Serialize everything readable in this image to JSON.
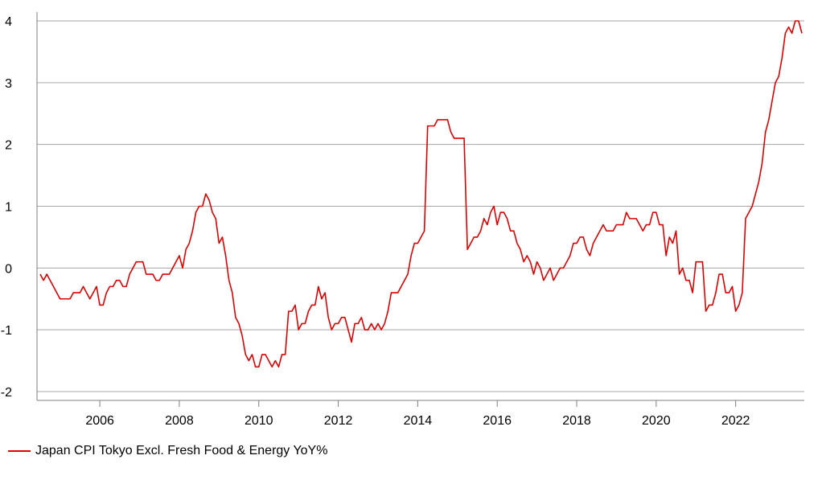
{
  "chart_data": {
    "type": "line",
    "title": "",
    "xlabel": "",
    "ylabel": "",
    "ylim": [
      -2,
      4
    ],
    "xlim": [
      "2004-07",
      "2023-09"
    ],
    "yticks": [
      "4",
      "3",
      "2",
      "1",
      "0",
      "-1",
      "-2"
    ],
    "xticks": [
      "2006",
      "2008",
      "2010",
      "2012",
      "2014",
      "2016",
      "2018",
      "2020",
      "2022"
    ],
    "grid": "horizontal",
    "legend_position": "bottom-left",
    "series": [
      {
        "name": "Japan CPI Tokyo Excl. Fresh Food & Energy YoY%",
        "color": "#e00000",
        "x": [
          "2004-07",
          "2004-08",
          "2004-09",
          "2004-10",
          "2004-11",
          "2004-12",
          "2005-01",
          "2005-02",
          "2005-03",
          "2005-04",
          "2005-05",
          "2005-06",
          "2005-07",
          "2005-08",
          "2005-09",
          "2005-10",
          "2005-11",
          "2005-12",
          "2006-01",
          "2006-02",
          "2006-03",
          "2006-04",
          "2006-05",
          "2006-06",
          "2006-07",
          "2006-08",
          "2006-09",
          "2006-10",
          "2006-11",
          "2006-12",
          "2007-01",
          "2007-02",
          "2007-03",
          "2007-04",
          "2007-05",
          "2007-06",
          "2007-07",
          "2007-08",
          "2007-09",
          "2007-10",
          "2007-11",
          "2007-12",
          "2008-01",
          "2008-02",
          "2008-03",
          "2008-04",
          "2008-05",
          "2008-06",
          "2008-07",
          "2008-08",
          "2008-09",
          "2008-10",
          "2008-11",
          "2008-12",
          "2009-01",
          "2009-02",
          "2009-03",
          "2009-04",
          "2009-05",
          "2009-06",
          "2009-07",
          "2009-08",
          "2009-09",
          "2009-10",
          "2009-11",
          "2009-12",
          "2010-01",
          "2010-02",
          "2010-03",
          "2010-04",
          "2010-05",
          "2010-06",
          "2010-07",
          "2010-08",
          "2010-09",
          "2010-10",
          "2010-11",
          "2010-12",
          "2011-01",
          "2011-02",
          "2011-03",
          "2011-04",
          "2011-05",
          "2011-06",
          "2011-07",
          "2011-08",
          "2011-09",
          "2011-10",
          "2011-11",
          "2011-12",
          "2012-01",
          "2012-02",
          "2012-03",
          "2012-04",
          "2012-05",
          "2012-06",
          "2012-07",
          "2012-08",
          "2012-09",
          "2012-10",
          "2012-11",
          "2012-12",
          "2013-01",
          "2013-02",
          "2013-03",
          "2013-04",
          "2013-05",
          "2013-06",
          "2013-07",
          "2013-08",
          "2013-09",
          "2013-10",
          "2013-11",
          "2013-12",
          "2014-01",
          "2014-02",
          "2014-03",
          "2014-04",
          "2014-05",
          "2014-06",
          "2014-07",
          "2014-08",
          "2014-09",
          "2014-10",
          "2014-11",
          "2014-12",
          "2015-01",
          "2015-02",
          "2015-03",
          "2015-04",
          "2015-05",
          "2015-06",
          "2015-07",
          "2015-08",
          "2015-09",
          "2015-10",
          "2015-11",
          "2015-12",
          "2016-01",
          "2016-02",
          "2016-03",
          "2016-04",
          "2016-05",
          "2016-06",
          "2016-07",
          "2016-08",
          "2016-09",
          "2016-10",
          "2016-11",
          "2016-12",
          "2017-01",
          "2017-02",
          "2017-03",
          "2017-04",
          "2017-05",
          "2017-06",
          "2017-07",
          "2017-08",
          "2017-09",
          "2017-10",
          "2017-11",
          "2017-12",
          "2018-01",
          "2018-02",
          "2018-03",
          "2018-04",
          "2018-05",
          "2018-06",
          "2018-07",
          "2018-08",
          "2018-09",
          "2018-10",
          "2018-11",
          "2018-12",
          "2019-01",
          "2019-02",
          "2019-03",
          "2019-04",
          "2019-05",
          "2019-06",
          "2019-07",
          "2019-08",
          "2019-09",
          "2019-10",
          "2019-11",
          "2019-12",
          "2020-01",
          "2020-02",
          "2020-03",
          "2020-04",
          "2020-05",
          "2020-06",
          "2020-07",
          "2020-08",
          "2020-09",
          "2020-10",
          "2020-11",
          "2020-12",
          "2021-01",
          "2021-02",
          "2021-03",
          "2021-04",
          "2021-05",
          "2021-06",
          "2021-07",
          "2021-08",
          "2021-09",
          "2021-10",
          "2021-11",
          "2021-12",
          "2022-01",
          "2022-02",
          "2022-03",
          "2022-04",
          "2022-05",
          "2022-06",
          "2022-07",
          "2022-08",
          "2022-09",
          "2022-10",
          "2022-11",
          "2022-12",
          "2023-01",
          "2023-02",
          "2023-03",
          "2023-04",
          "2023-05",
          "2023-06",
          "2023-07",
          "2023-08",
          "2023-09"
        ],
        "values": [
          -0.1,
          -0.2,
          -0.1,
          -0.2,
          -0.3,
          -0.4,
          -0.5,
          -0.5,
          -0.5,
          -0.5,
          -0.4,
          -0.4,
          -0.4,
          -0.3,
          -0.4,
          -0.5,
          -0.4,
          -0.3,
          -0.6,
          -0.6,
          -0.4,
          -0.3,
          -0.3,
          -0.2,
          -0.2,
          -0.3,
          -0.3,
          -0.1,
          0.0,
          0.1,
          0.1,
          0.1,
          -0.1,
          -0.1,
          -0.1,
          -0.2,
          -0.2,
          -0.1,
          -0.1,
          -0.1,
          0.0,
          0.1,
          0.2,
          0.0,
          0.3,
          0.4,
          0.6,
          0.9,
          1.0,
          1.0,
          1.2,
          1.1,
          0.9,
          0.8,
          0.4,
          0.5,
          0.2,
          -0.2,
          -0.4,
          -0.8,
          -0.9,
          -1.1,
          -1.4,
          -1.5,
          -1.4,
          -1.6,
          -1.6,
          -1.4,
          -1.4,
          -1.5,
          -1.6,
          -1.5,
          -1.6,
          -1.4,
          -1.4,
          -0.7,
          -0.7,
          -0.6,
          -1.0,
          -0.9,
          -0.9,
          -0.7,
          -0.6,
          -0.6,
          -0.3,
          -0.5,
          -0.4,
          -0.8,
          -1.0,
          -0.9,
          -0.9,
          -0.8,
          -0.8,
          -1.0,
          -1.2,
          -0.9,
          -0.9,
          -0.8,
          -1.0,
          -1.0,
          -0.9,
          -1.0,
          -0.9,
          -1.0,
          -0.9,
          -0.7,
          -0.4,
          -0.4,
          -0.4,
          -0.3,
          -0.2,
          -0.1,
          0.2,
          0.4,
          0.4,
          0.5,
          0.6,
          2.3,
          2.3,
          2.3,
          2.4,
          2.4,
          2.4,
          2.4,
          2.2,
          2.1,
          2.1,
          2.1,
          2.1,
          0.3,
          0.4,
          0.5,
          0.5,
          0.6,
          0.8,
          0.7,
          0.9,
          1.0,
          0.7,
          0.9,
          0.9,
          0.8,
          0.6,
          0.6,
          0.4,
          0.3,
          0.1,
          0.2,
          0.1,
          -0.1,
          0.1,
          0.0,
          -0.2,
          -0.1,
          0.0,
          -0.2,
          -0.1,
          0.0,
          0.0,
          0.1,
          0.2,
          0.4,
          0.4,
          0.5,
          0.5,
          0.3,
          0.2,
          0.4,
          0.5,
          0.6,
          0.7,
          0.6,
          0.6,
          0.6,
          0.7,
          0.7,
          0.7,
          0.9,
          0.8,
          0.8,
          0.8,
          0.7,
          0.6,
          0.7,
          0.7,
          0.9,
          0.9,
          0.7,
          0.7,
          0.2,
          0.5,
          0.4,
          0.6,
          -0.1,
          0.0,
          -0.2,
          -0.2,
          -0.4,
          0.1,
          0.1,
          0.1,
          -0.7,
          -0.6,
          -0.6,
          -0.4,
          -0.1,
          -0.1,
          -0.4,
          -0.4,
          -0.3,
          -0.7,
          -0.6,
          -0.4,
          0.8,
          0.9,
          1.0,
          1.2,
          1.4,
          1.7,
          2.2,
          2.4,
          2.7,
          3.0,
          3.1,
          3.4,
          3.8,
          3.9,
          3.8,
          4.0,
          4.0,
          3.8
        ]
      }
    ]
  }
}
